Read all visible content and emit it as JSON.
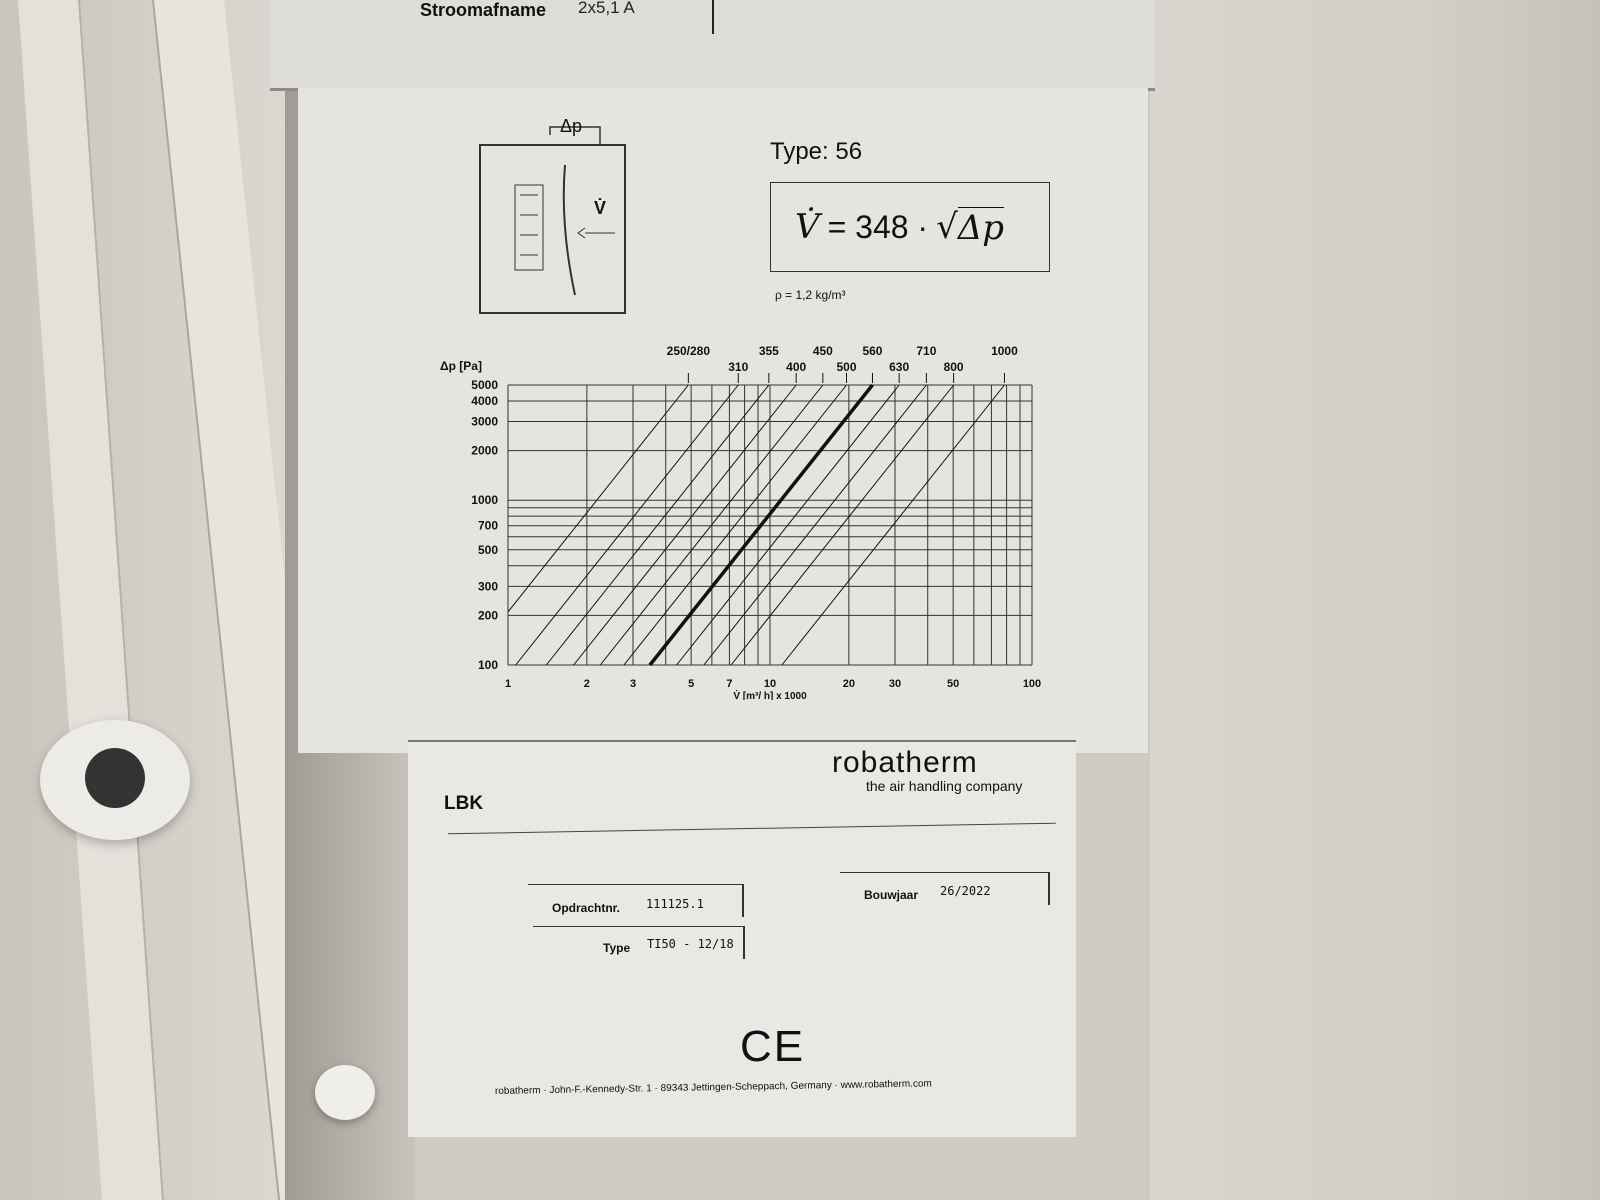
{
  "top_plate": {
    "label": "Stroomafname",
    "value": "2x5,1 A"
  },
  "diagram": {
    "dp_label": "Δp",
    "v_label": "V̇"
  },
  "type_label": "Type: 56",
  "formula": {
    "lhs": "V̇",
    "equals": "= 348 ·",
    "radicand": "Δp"
  },
  "density": "ρ = 1,2 kg/m³",
  "chart_data": {
    "type": "line",
    "x_scale": "log",
    "y_scale": "log",
    "xlim": [
      1,
      100
    ],
    "ylim": [
      100,
      5000
    ],
    "ylabel": "Δp [Pa]",
    "xlabel": "V̇ [m³/ h] x 1000",
    "x_ticks": [
      "1",
      "2",
      "3",
      "5",
      "7",
      "10",
      "20",
      "30",
      "50",
      "100"
    ],
    "y_ticks": [
      "100",
      "200",
      "300",
      "500",
      "700",
      "1000",
      "2000",
      "3000",
      "4000",
      "5000"
    ],
    "top_labels": [
      "250/280",
      "310",
      "355",
      "400",
      "450",
      "500",
      "560",
      "630",
      "710",
      "800",
      "1000"
    ],
    "grid": true,
    "highlighted_series": {
      "name": "560",
      "k": 348
    },
    "series": [
      {
        "name": "250/280",
        "k": 69
      },
      {
        "name": "310",
        "k": 107
      },
      {
        "name": "355",
        "k": 140
      },
      {
        "name": "400",
        "k": 178
      },
      {
        "name": "450",
        "k": 225
      },
      {
        "name": "500",
        "k": 277
      },
      {
        "name": "560",
        "k": 348
      },
      {
        "name": "630",
        "k": 440
      },
      {
        "name": "710",
        "k": 559
      },
      {
        "name": "800",
        "k": 710
      },
      {
        "name": "1000",
        "k": 1110
      }
    ]
  },
  "lower": {
    "product": "LBK",
    "brand": "robatherm",
    "tagline": "the air handling company",
    "order_label": "Opdrachtnr.",
    "order_value": "111125.1",
    "type_label": "Type",
    "type_value": "TI50 - 12/18",
    "year_label": "Bouwjaar",
    "year_value": "26/2022",
    "ce_mark": "CE",
    "footer": "robatherm · John-F.-Kennedy-Str. 1 · 89343 Jettingen-Scheppach, Germany · www.robatherm.com"
  }
}
